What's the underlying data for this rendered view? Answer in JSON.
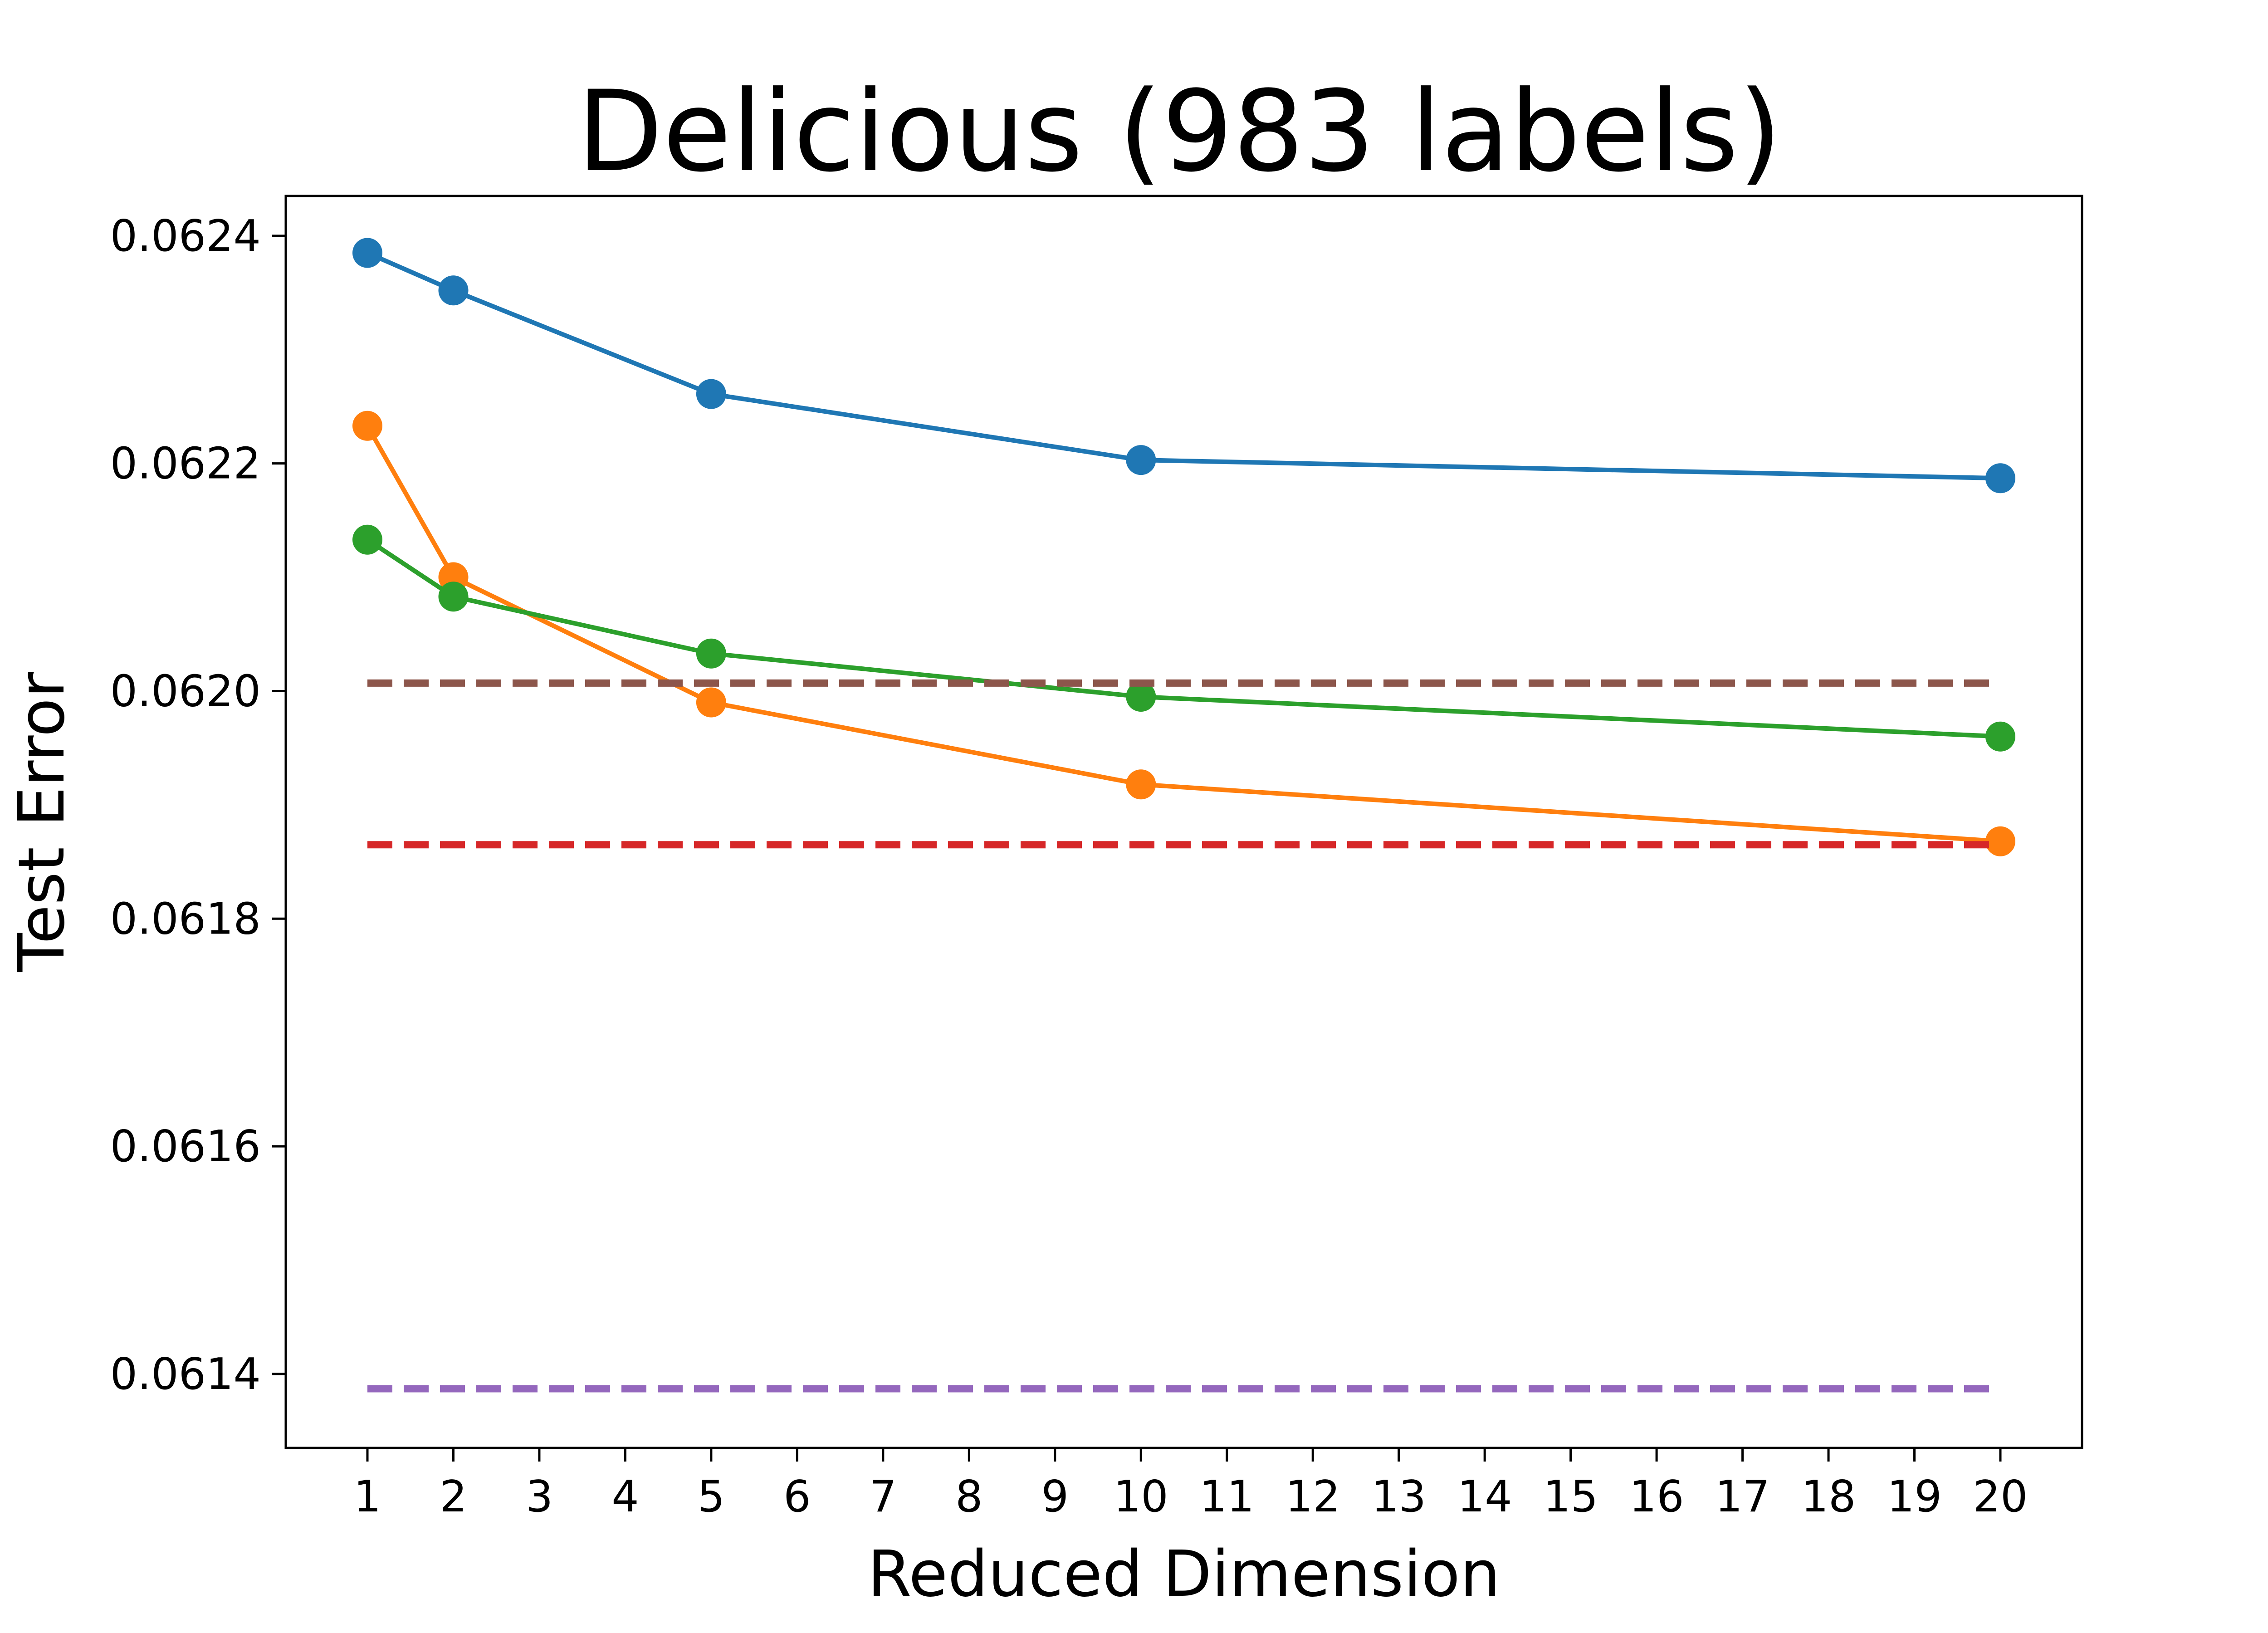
{
  "chart_data": {
    "type": "line",
    "title": "Delicious (983 labels)",
    "xlabel": "Reduced Dimension",
    "ylabel": "Test Error",
    "xlim": [
      0.05,
      20.95
    ],
    "ylim": [
      0.061335,
      0.062435
    ],
    "grid": false,
    "x_ticks": [
      1,
      2,
      3,
      4,
      5,
      6,
      7,
      8,
      9,
      10,
      11,
      12,
      13,
      14,
      15,
      16,
      17,
      18,
      19,
      20
    ],
    "y_ticks": [
      0.0614,
      0.0616,
      0.0618,
      0.062,
      0.0622,
      0.0624
    ],
    "y_tick_labels": [
      "0.0614",
      "0.0616",
      "0.0618",
      "0.0620",
      "0.0622",
      "0.0624"
    ],
    "series": [
      {
        "color": "#1f77b4",
        "style": "solid-markers",
        "x": [
          1,
          2,
          5,
          10,
          20
        ],
        "y": [
          0.062385,
          0.062352,
          0.062261,
          0.062203,
          0.062187
        ]
      },
      {
        "color": "#ff7f0e",
        "style": "solid-markers",
        "x": [
          1,
          2,
          5,
          10,
          20
        ],
        "y": [
          0.062233,
          0.0621,
          0.06199,
          0.061918,
          0.061868
        ]
      },
      {
        "color": "#2ca02c",
        "style": "solid-markers",
        "x": [
          1,
          2,
          5,
          10,
          20
        ],
        "y": [
          0.062133,
          0.062083,
          0.062033,
          0.061995,
          0.06196
        ]
      },
      {
        "color": "#8c564b",
        "style": "dashed",
        "x": [
          1,
          20
        ],
        "y": [
          0.062007,
          0.062007
        ]
      },
      {
        "color": "#d62728",
        "style": "dashed",
        "x": [
          1,
          20
        ],
        "y": [
          0.061865,
          0.061865
        ]
      },
      {
        "color": "#9467bd",
        "style": "dashed",
        "x": [
          1,
          20
        ],
        "y": [
          0.061387,
          0.061387
        ]
      }
    ]
  }
}
